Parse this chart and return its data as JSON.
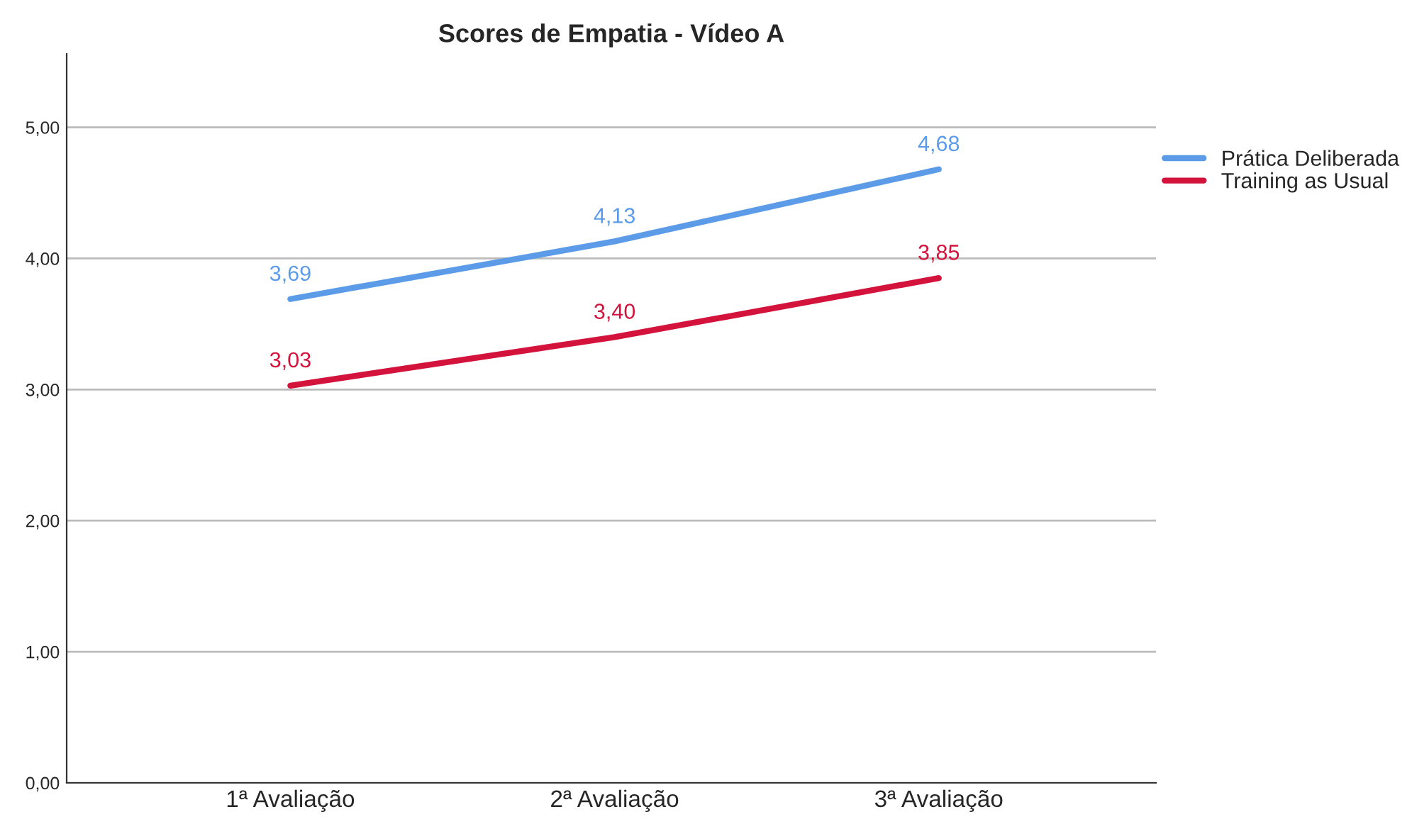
{
  "chart_data": {
    "type": "line",
    "title": "Scores de Empatia - Vídeo A",
    "categories": [
      "1ª Avaliação",
      "2ª Avaliação",
      "3ª Avaliação"
    ],
    "series": [
      {
        "name": "Prática Deliberada",
        "color": "#5b9be8",
        "values": [
          3.69,
          4.13,
          4.68
        ],
        "value_labels": [
          "3,69",
          "4,13",
          "4,68"
        ]
      },
      {
        "name": "Training as Usual",
        "color": "#d4133c",
        "values": [
          3.03,
          3.4,
          3.85
        ],
        "value_labels": [
          "3,03",
          "3,40",
          "3,85"
        ]
      }
    ],
    "ylim": [
      0,
      5.56
    ],
    "yticks": [
      {
        "value": 0,
        "label": "0,00"
      },
      {
        "value": 1,
        "label": "1,00"
      },
      {
        "value": 2,
        "label": "2,00"
      },
      {
        "value": 3,
        "label": "3,00"
      },
      {
        "value": 4,
        "label": "4,00"
      },
      {
        "value": 5,
        "label": "5,00"
      }
    ],
    "grid": "y",
    "legend": "top right",
    "marker": "none",
    "line_style": "solid"
  }
}
